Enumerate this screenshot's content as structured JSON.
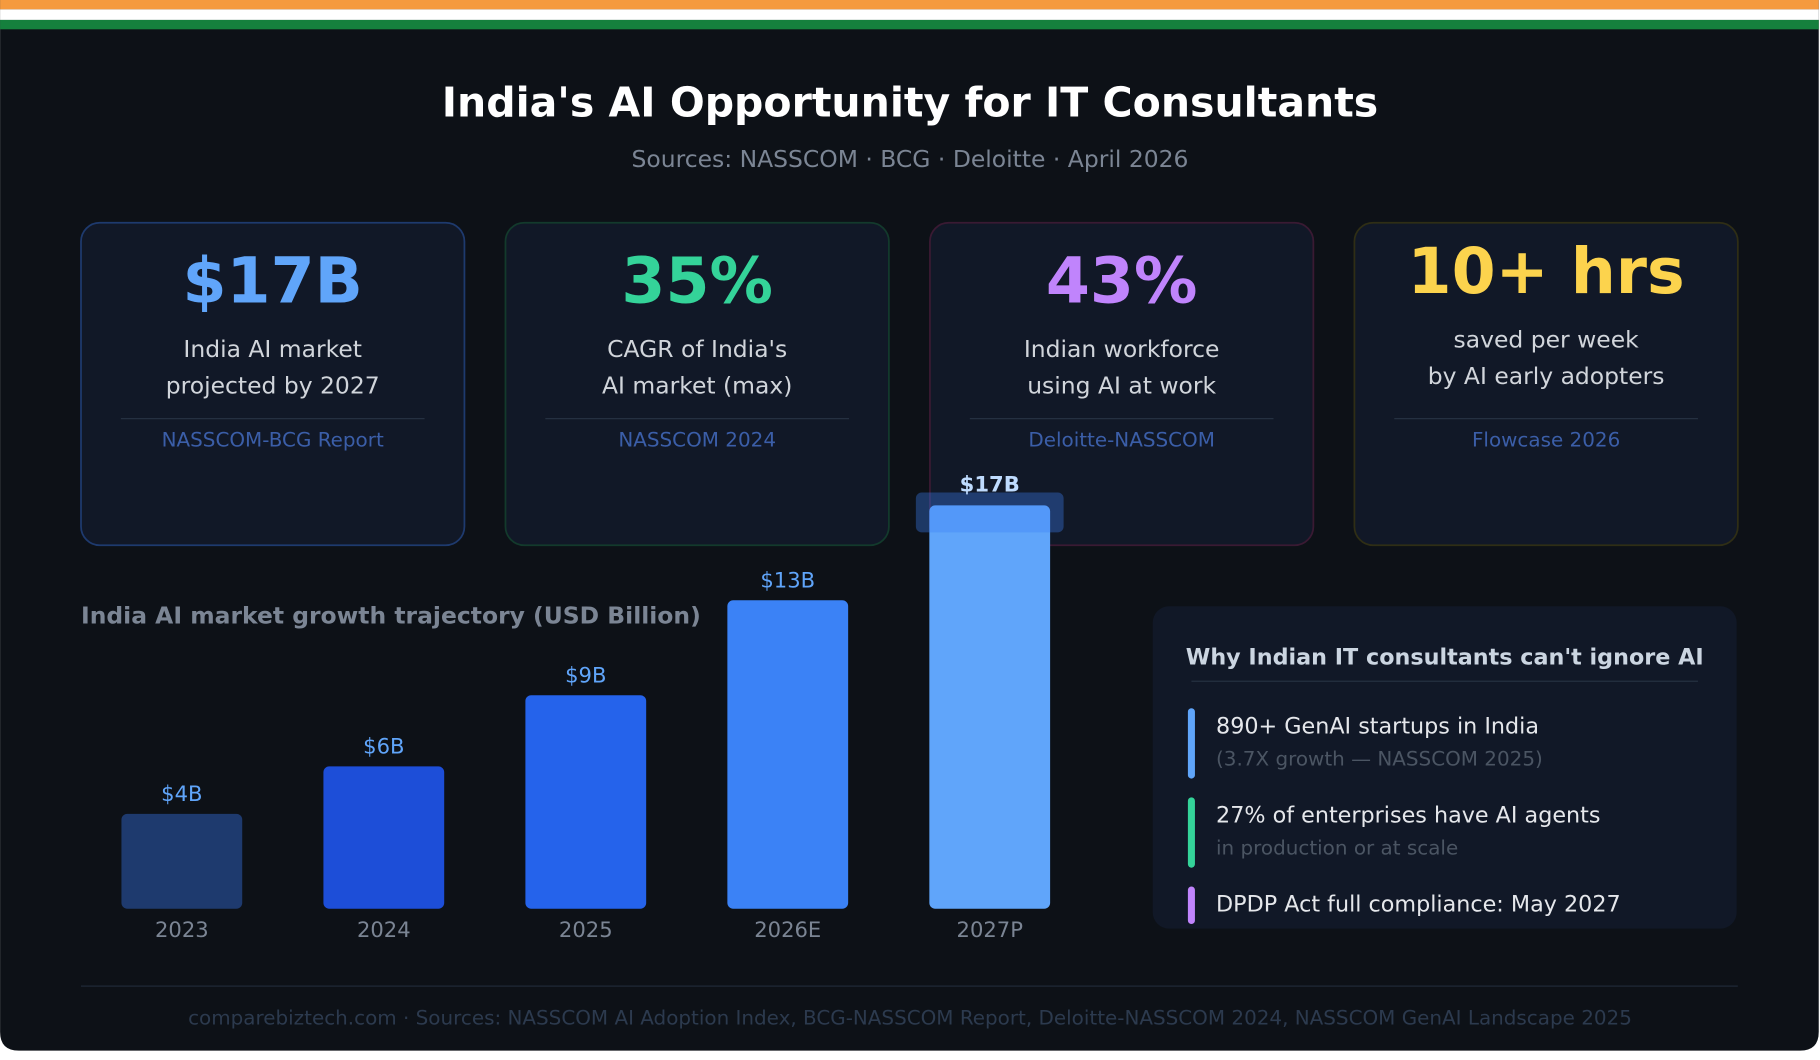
{
  "header": {
    "title": "India's AI Opportunity for IT Consultants",
    "subtitle": "Sources: NASSCOM · BCG · Deloitte · April 2026"
  },
  "cards": [
    {
      "value": "$17B",
      "lines": [
        "India AI market",
        "projected by 2027"
      ],
      "source": "NASSCOM-BCG Report",
      "color": "#60a5fa",
      "border": "#1e3a6e"
    },
    {
      "value": "35%",
      "lines": [
        "CAGR of India's",
        "AI market (max)"
      ],
      "source": "NASSCOM 2024",
      "color": "#34d399",
      "border": "#133a2c"
    },
    {
      "value": "43%",
      "lines": [
        "Indian workforce",
        "using AI at work"
      ],
      "source": "Deloitte-NASSCOM",
      "color": "#c084fc",
      "border": "#3a1a33"
    },
    {
      "value": "10+ hrs",
      "lines": [
        "saved per week",
        "by AI early adopters"
      ],
      "source": "Flowcase 2026",
      "color": "#fcd34d",
      "border": "#2f2e15"
    }
  ],
  "chart_data": {
    "type": "bar",
    "title": "India AI market growth trajectory (USD Billion)",
    "categories": [
      "2023",
      "2024",
      "2025",
      "2026E",
      "2027P"
    ],
    "values": [
      4,
      6,
      9,
      13,
      17
    ],
    "value_labels": [
      "$4B",
      "$6B",
      "$9B",
      "$13B",
      "$17B"
    ],
    "colors": [
      "#1e3a6e",
      "#1d4ed8",
      "#2563eb",
      "#3b82f6",
      "#60a5fa"
    ]
  },
  "panel": {
    "title": "Why Indian IT consultants can't ignore AI",
    "items": [
      {
        "text": "890+ GenAI startups in India",
        "note": "(3.7X growth — NASSCOM 2025)",
        "color": "#60a5fa"
      },
      {
        "text": "27% of enterprises have AI agents",
        "note": "in production or at scale",
        "color": "#34d399"
      },
      {
        "text": "DPDP Act full compliance: May 2027",
        "color": "#c084fc"
      }
    ]
  },
  "footer": "comparebiztech.com · Sources: NASSCOM AI Adoption Index, BCG-NASSCOM Report, Deloitte-NASSCOM 2024, NASSCOM GenAI Landscape 2025"
}
